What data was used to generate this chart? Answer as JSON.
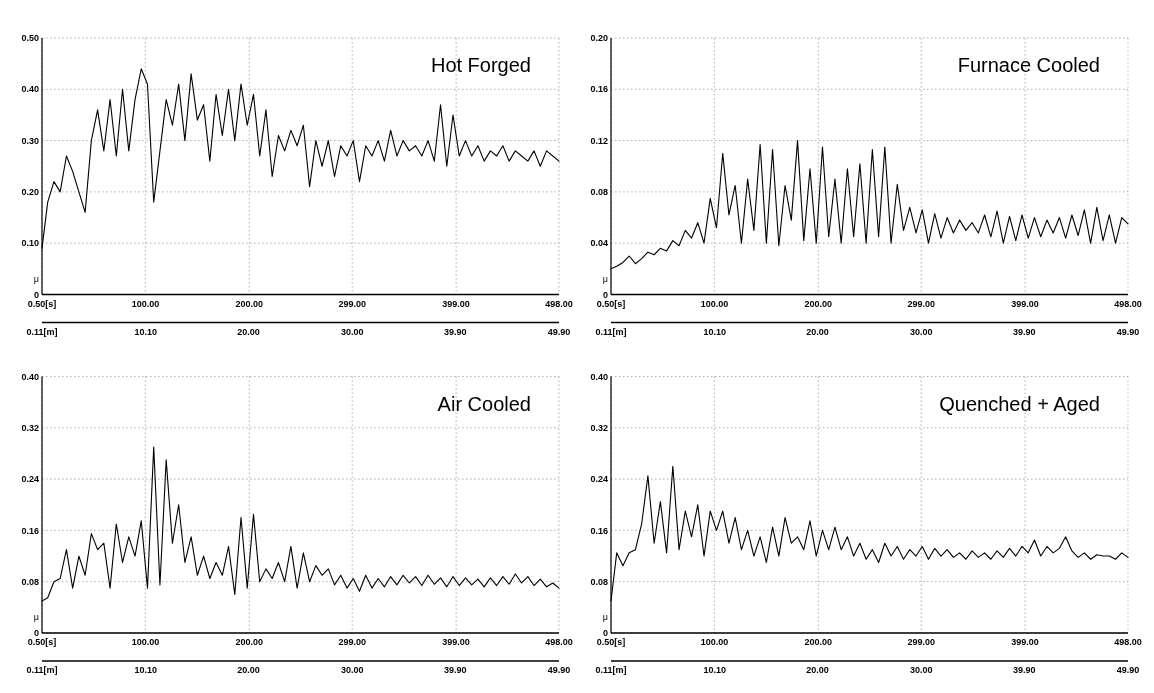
{
  "chart_data": [
    {
      "type": "line",
      "title": "Hot Forged",
      "ylabel": "μ",
      "color": "#000000",
      "grid": true,
      "line_style": "solid",
      "xlim": [
        0.5,
        498
      ],
      "xticks": [
        {
          "value": 0.5,
          "label": "0.50[s]"
        },
        {
          "value": 100,
          "label": "100.00"
        },
        {
          "value": 200,
          "label": "200.00"
        },
        {
          "value": 299,
          "label": "299.00"
        },
        {
          "value": 399,
          "label": "399.00"
        },
        {
          "value": 498,
          "label": "498.00"
        }
      ],
      "x2lim": [
        0.11,
        49.9
      ],
      "x2ticks": [
        {
          "value": 0.11,
          "label": "0.11[m]"
        },
        {
          "value": 10.1,
          "label": "10.10"
        },
        {
          "value": 20,
          "label": "20.00"
        },
        {
          "value": 30,
          "label": "30.00"
        },
        {
          "value": 39.9,
          "label": "39.90"
        },
        {
          "value": 49.9,
          "label": "49.90"
        }
      ],
      "ylim": [
        0,
        0.5
      ],
      "yticks": [
        {
          "value": 0,
          "label": "0"
        },
        {
          "value": 0.1,
          "label": "0.10"
        },
        {
          "value": 0.2,
          "label": "0.20"
        },
        {
          "value": 0.3,
          "label": "0.30"
        },
        {
          "value": 0.4,
          "label": "0.40"
        },
        {
          "value": 0.5,
          "label": "0.50"
        }
      ],
      "x": [
        0.5,
        6,
        12,
        18,
        24,
        30,
        36,
        42,
        48,
        54,
        60,
        66,
        72,
        78,
        84,
        90,
        96,
        102,
        108,
        114,
        120,
        126,
        132,
        138,
        144,
        150,
        156,
        162,
        168,
        174,
        180,
        186,
        192,
        198,
        204,
        210,
        216,
        222,
        228,
        234,
        240,
        246,
        252,
        258,
        264,
        270,
        276,
        282,
        288,
        294,
        300,
        306,
        312,
        318,
        324,
        330,
        336,
        342,
        348,
        354,
        360,
        366,
        372,
        378,
        384,
        390,
        396,
        402,
        408,
        414,
        420,
        426,
        432,
        438,
        444,
        450,
        456,
        462,
        468,
        474,
        480,
        486,
        492,
        498
      ],
      "values": [
        0.09,
        0.18,
        0.22,
        0.2,
        0.27,
        0.24,
        0.2,
        0.16,
        0.3,
        0.36,
        0.28,
        0.38,
        0.27,
        0.4,
        0.28,
        0.38,
        0.44,
        0.41,
        0.18,
        0.28,
        0.38,
        0.33,
        0.41,
        0.3,
        0.43,
        0.34,
        0.37,
        0.26,
        0.39,
        0.31,
        0.4,
        0.3,
        0.41,
        0.33,
        0.39,
        0.27,
        0.36,
        0.23,
        0.31,
        0.28,
        0.32,
        0.29,
        0.33,
        0.21,
        0.3,
        0.25,
        0.3,
        0.23,
        0.29,
        0.27,
        0.3,
        0.22,
        0.29,
        0.27,
        0.3,
        0.26,
        0.32,
        0.27,
        0.3,
        0.28,
        0.29,
        0.27,
        0.3,
        0.26,
        0.37,
        0.25,
        0.35,
        0.27,
        0.3,
        0.27,
        0.29,
        0.26,
        0.28,
        0.27,
        0.29,
        0.26,
        0.28,
        0.27,
        0.26,
        0.28,
        0.25,
        0.28,
        0.27,
        0.26
      ]
    },
    {
      "type": "line",
      "title": "Furnace Cooled",
      "ylabel": "μ",
      "color": "#000000",
      "grid": true,
      "line_style": "solid",
      "xlim": [
        0.5,
        498
      ],
      "xticks": [
        {
          "value": 0.5,
          "label": "0.50[s]"
        },
        {
          "value": 100,
          "label": "100.00"
        },
        {
          "value": 200,
          "label": "200.00"
        },
        {
          "value": 299,
          "label": "299.00"
        },
        {
          "value": 399,
          "label": "399.00"
        },
        {
          "value": 498,
          "label": "498.00"
        }
      ],
      "x2lim": [
        0.11,
        49.9
      ],
      "x2ticks": [
        {
          "value": 0.11,
          "label": "0.11[m]"
        },
        {
          "value": 10.1,
          "label": "10.10"
        },
        {
          "value": 20,
          "label": "20.00"
        },
        {
          "value": 30,
          "label": "30.00"
        },
        {
          "value": 39.9,
          "label": "39.90"
        },
        {
          "value": 49.9,
          "label": "49.90"
        }
      ],
      "ylim": [
        0,
        0.2
      ],
      "yticks": [
        {
          "value": 0,
          "label": "0"
        },
        {
          "value": 0.04,
          "label": "0.04"
        },
        {
          "value": 0.08,
          "label": "0.08"
        },
        {
          "value": 0.12,
          "label": "0.12"
        },
        {
          "value": 0.16,
          "label": "0.16"
        },
        {
          "value": 0.2,
          "label": "0.20"
        }
      ],
      "x": [
        0.5,
        6,
        12,
        18,
        24,
        30,
        36,
        42,
        48,
        54,
        60,
        66,
        72,
        78,
        84,
        90,
        96,
        102,
        108,
        114,
        120,
        126,
        132,
        138,
        144,
        150,
        156,
        162,
        168,
        174,
        180,
        186,
        192,
        198,
        204,
        210,
        216,
        222,
        228,
        234,
        240,
        246,
        252,
        258,
        264,
        270,
        276,
        282,
        288,
        294,
        300,
        306,
        312,
        318,
        324,
        330,
        336,
        342,
        348,
        354,
        360,
        366,
        372,
        378,
        384,
        390,
        396,
        402,
        408,
        414,
        420,
        426,
        432,
        438,
        444,
        450,
        456,
        462,
        468,
        474,
        480,
        486,
        492,
        498
      ],
      "values": [
        0.02,
        0.022,
        0.025,
        0.03,
        0.024,
        0.028,
        0.033,
        0.031,
        0.036,
        0.034,
        0.042,
        0.038,
        0.05,
        0.044,
        0.056,
        0.04,
        0.075,
        0.052,
        0.11,
        0.062,
        0.085,
        0.04,
        0.09,
        0.05,
        0.117,
        0.04,
        0.113,
        0.038,
        0.085,
        0.058,
        0.12,
        0.042,
        0.098,
        0.04,
        0.115,
        0.045,
        0.09,
        0.04,
        0.098,
        0.045,
        0.102,
        0.04,
        0.113,
        0.045,
        0.115,
        0.04,
        0.086,
        0.05,
        0.068,
        0.048,
        0.066,
        0.04,
        0.063,
        0.044,
        0.06,
        0.048,
        0.058,
        0.05,
        0.056,
        0.048,
        0.062,
        0.045,
        0.065,
        0.04,
        0.061,
        0.042,
        0.062,
        0.044,
        0.06,
        0.045,
        0.058,
        0.048,
        0.06,
        0.044,
        0.062,
        0.046,
        0.066,
        0.04,
        0.068,
        0.042,
        0.062,
        0.04,
        0.06,
        0.055
      ]
    },
    {
      "type": "line",
      "title": "Air Cooled",
      "ylabel": "μ",
      "color": "#000000",
      "grid": true,
      "line_style": "solid",
      "xlim": [
        0.5,
        498
      ],
      "xticks": [
        {
          "value": 0.5,
          "label": "0.50[s]"
        },
        {
          "value": 100,
          "label": "100.00"
        },
        {
          "value": 200,
          "label": "200.00"
        },
        {
          "value": 299,
          "label": "299.00"
        },
        {
          "value": 399,
          "label": "399.00"
        },
        {
          "value": 498,
          "label": "498.00"
        }
      ],
      "x2lim": [
        0.11,
        49.9
      ],
      "x2ticks": [
        {
          "value": 0.11,
          "label": "0.11[m]"
        },
        {
          "value": 10.1,
          "label": "10.10"
        },
        {
          "value": 20,
          "label": "20.00"
        },
        {
          "value": 30,
          "label": "30.00"
        },
        {
          "value": 39.9,
          "label": "39.90"
        },
        {
          "value": 49.9,
          "label": "49.90"
        }
      ],
      "ylim": [
        0,
        0.4
      ],
      "yticks": [
        {
          "value": 0,
          "label": "0"
        },
        {
          "value": 0.08,
          "label": "0.08"
        },
        {
          "value": 0.16,
          "label": "0.16"
        },
        {
          "value": 0.24,
          "label": "0.24"
        },
        {
          "value": 0.32,
          "label": "0.32"
        },
        {
          "value": 0.4,
          "label": "0.40"
        }
      ],
      "x": [
        0.5,
        6,
        12,
        18,
        24,
        30,
        36,
        42,
        48,
        54,
        60,
        66,
        72,
        78,
        84,
        90,
        96,
        102,
        108,
        114,
        120,
        126,
        132,
        138,
        144,
        150,
        156,
        162,
        168,
        174,
        180,
        186,
        192,
        198,
        204,
        210,
        216,
        222,
        228,
        234,
        240,
        246,
        252,
        258,
        264,
        270,
        276,
        282,
        288,
        294,
        300,
        306,
        312,
        318,
        324,
        330,
        336,
        342,
        348,
        354,
        360,
        366,
        372,
        378,
        384,
        390,
        396,
        402,
        408,
        414,
        420,
        426,
        432,
        438,
        444,
        450,
        456,
        462,
        468,
        474,
        480,
        486,
        492,
        498
      ],
      "values": [
        0.05,
        0.055,
        0.08,
        0.085,
        0.13,
        0.07,
        0.12,
        0.09,
        0.155,
        0.13,
        0.14,
        0.07,
        0.17,
        0.11,
        0.15,
        0.12,
        0.175,
        0.07,
        0.29,
        0.075,
        0.27,
        0.14,
        0.2,
        0.11,
        0.15,
        0.09,
        0.12,
        0.085,
        0.11,
        0.09,
        0.135,
        0.06,
        0.18,
        0.07,
        0.185,
        0.08,
        0.1,
        0.085,
        0.11,
        0.08,
        0.135,
        0.07,
        0.125,
        0.08,
        0.105,
        0.09,
        0.1,
        0.075,
        0.09,
        0.07,
        0.085,
        0.065,
        0.09,
        0.07,
        0.085,
        0.072,
        0.088,
        0.075,
        0.09,
        0.078,
        0.088,
        0.074,
        0.09,
        0.076,
        0.086,
        0.072,
        0.088,
        0.074,
        0.086,
        0.075,
        0.084,
        0.072,
        0.086,
        0.074,
        0.088,
        0.076,
        0.092,
        0.078,
        0.088,
        0.074,
        0.084,
        0.072,
        0.078,
        0.07
      ]
    },
    {
      "type": "line",
      "title": "Quenched + Aged",
      "ylabel": "μ",
      "color": "#000000",
      "grid": true,
      "line_style": "solid",
      "xlim": [
        0.5,
        498
      ],
      "xticks": [
        {
          "value": 0.5,
          "label": "0.50[s]"
        },
        {
          "value": 100,
          "label": "100.00"
        },
        {
          "value": 200,
          "label": "200.00"
        },
        {
          "value": 299,
          "label": "299.00"
        },
        {
          "value": 399,
          "label": "399.00"
        },
        {
          "value": 498,
          "label": "498.00"
        }
      ],
      "x2lim": [
        0.11,
        49.9
      ],
      "x2ticks": [
        {
          "value": 0.11,
          "label": "0.11[m]"
        },
        {
          "value": 10.1,
          "label": "10.10"
        },
        {
          "value": 20,
          "label": "20.00"
        },
        {
          "value": 30,
          "label": "30.00"
        },
        {
          "value": 39.9,
          "label": "39.90"
        },
        {
          "value": 49.9,
          "label": "49.90"
        }
      ],
      "ylim": [
        0,
        0.4
      ],
      "yticks": [
        {
          "value": 0,
          "label": "0"
        },
        {
          "value": 0.08,
          "label": "0.08"
        },
        {
          "value": 0.16,
          "label": "0.16"
        },
        {
          "value": 0.24,
          "label": "0.24"
        },
        {
          "value": 0.32,
          "label": "0.32"
        },
        {
          "value": 0.4,
          "label": "0.40"
        }
      ],
      "x": [
        0.5,
        6,
        12,
        18,
        24,
        30,
        36,
        42,
        48,
        54,
        60,
        66,
        72,
        78,
        84,
        90,
        96,
        102,
        108,
        114,
        120,
        126,
        132,
        138,
        144,
        150,
        156,
        162,
        168,
        174,
        180,
        186,
        192,
        198,
        204,
        210,
        216,
        222,
        228,
        234,
        240,
        246,
        252,
        258,
        264,
        270,
        276,
        282,
        288,
        294,
        300,
        306,
        312,
        318,
        324,
        330,
        336,
        342,
        348,
        354,
        360,
        366,
        372,
        378,
        384,
        390,
        396,
        402,
        408,
        414,
        420,
        426,
        432,
        438,
        444,
        450,
        456,
        462,
        468,
        474,
        480,
        486,
        492,
        498
      ],
      "values": [
        0.05,
        0.125,
        0.105,
        0.125,
        0.13,
        0.17,
        0.245,
        0.14,
        0.205,
        0.125,
        0.26,
        0.13,
        0.19,
        0.15,
        0.2,
        0.12,
        0.19,
        0.16,
        0.19,
        0.14,
        0.18,
        0.13,
        0.16,
        0.12,
        0.15,
        0.11,
        0.165,
        0.12,
        0.18,
        0.14,
        0.15,
        0.13,
        0.175,
        0.12,
        0.16,
        0.13,
        0.165,
        0.13,
        0.15,
        0.12,
        0.14,
        0.115,
        0.13,
        0.11,
        0.14,
        0.12,
        0.135,
        0.115,
        0.13,
        0.12,
        0.135,
        0.115,
        0.132,
        0.12,
        0.13,
        0.118,
        0.125,
        0.115,
        0.128,
        0.118,
        0.125,
        0.115,
        0.128,
        0.118,
        0.132,
        0.12,
        0.135,
        0.125,
        0.145,
        0.12,
        0.135,
        0.125,
        0.132,
        0.15,
        0.128,
        0.118,
        0.125,
        0.115,
        0.122,
        0.12,
        0.12,
        0.115,
        0.125,
        0.118
      ]
    }
  ]
}
